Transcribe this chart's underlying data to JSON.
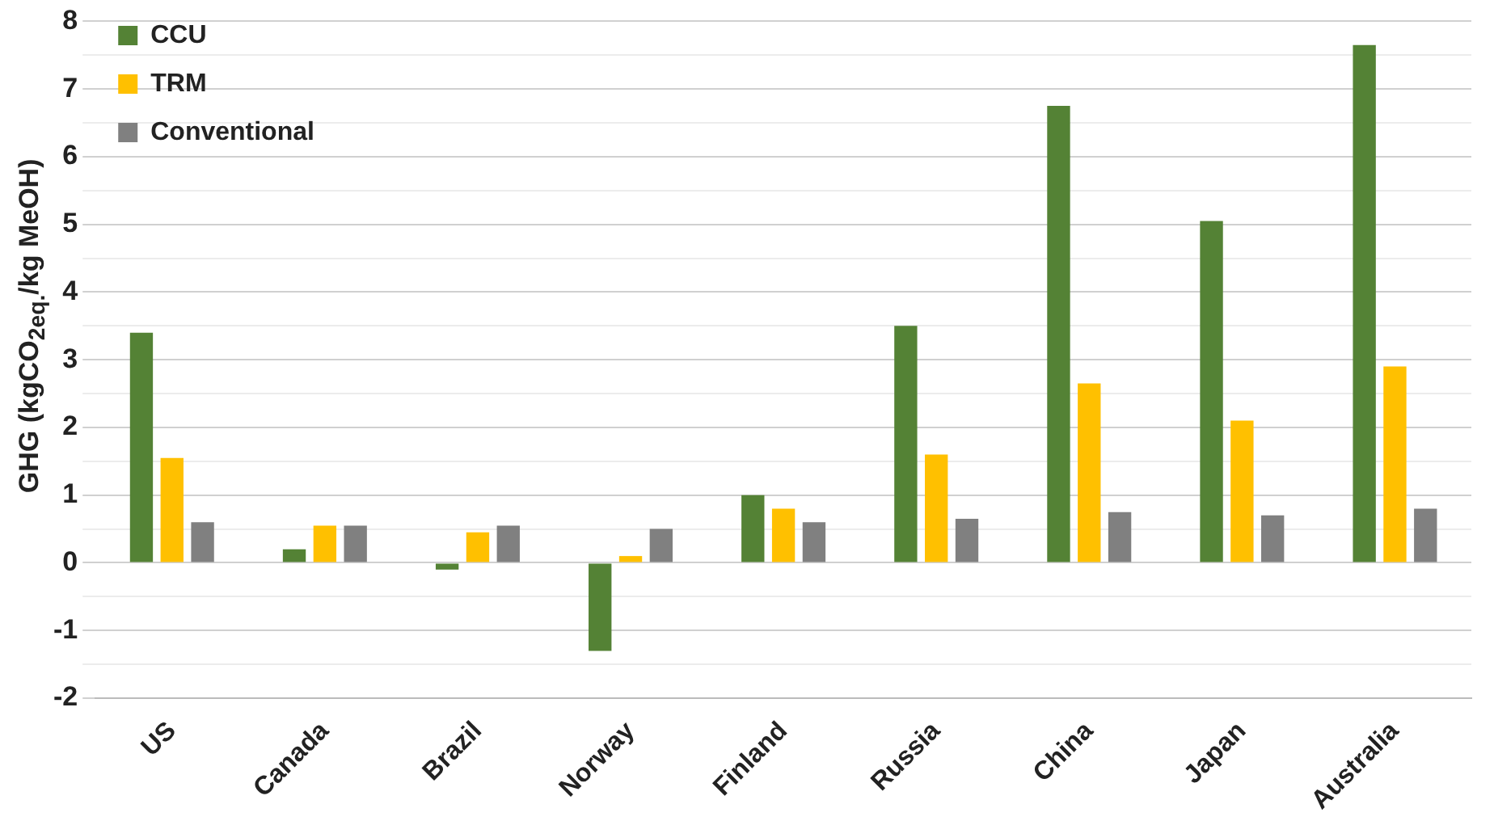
{
  "chart_data": {
    "type": "bar",
    "ylabel": "GHG (kgCO$_{2eq.}$/kg MeOH)",
    "categories": [
      "US",
      "Canada",
      "Brazil",
      "Norway",
      "Finland",
      "Russia",
      "China",
      "Japan",
      "Australia"
    ],
    "series": [
      {
        "name": "CCU",
        "color": "#548235",
        "values": [
          3.4,
          0.2,
          -0.1,
          -1.3,
          1.0,
          3.5,
          6.75,
          5.05,
          7.65
        ]
      },
      {
        "name": "TRM",
        "color": "#ffc000",
        "values": [
          1.55,
          0.55,
          0.45,
          0.1,
          0.8,
          1.6,
          2.65,
          2.1,
          2.9
        ]
      },
      {
        "name": "Conventional",
        "color": "#808080",
        "values": [
          0.6,
          0.55,
          0.55,
          0.5,
          0.6,
          0.65,
          0.75,
          0.7,
          0.8
        ]
      }
    ],
    "ylim": [
      -2,
      8
    ],
    "yticks": [
      -2,
      {
        "value": -1.5,
        "label": null
      },
      -1,
      {
        "value": -0.5,
        "label": null
      },
      0,
      {
        "value": 0.5,
        "label": null
      },
      1,
      {
        "value": 1.5,
        "label": null
      },
      2,
      {
        "value": 2.5,
        "label": null
      },
      3,
      {
        "value": 3.5,
        "label": null
      },
      4,
      {
        "value": 4.5,
        "label": null
      },
      5,
      {
        "value": 5.5,
        "label": null
      },
      6,
      {
        "value": 6.5,
        "label": null
      },
      7,
      {
        "value": 7.5,
        "label": null
      },
      8
    ],
    "grid": "y",
    "legend": "top left"
  }
}
